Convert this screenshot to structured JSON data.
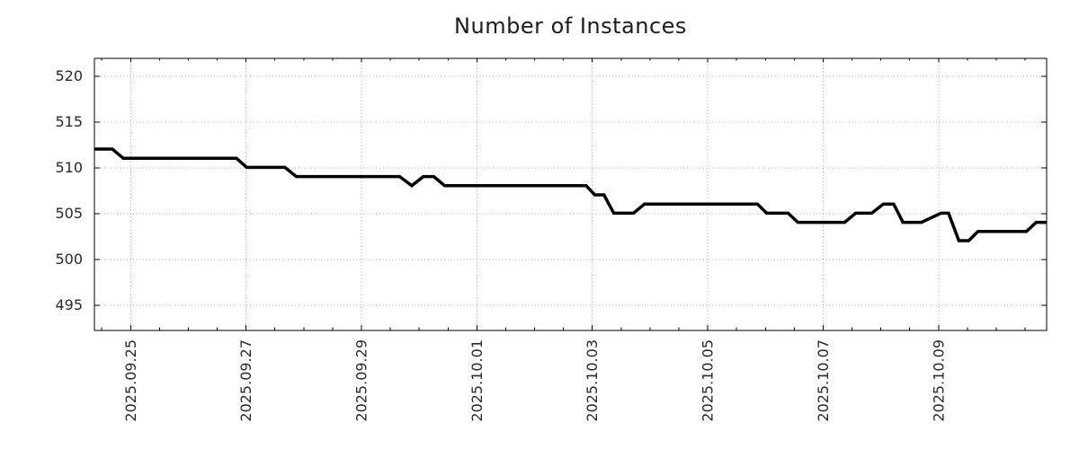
{
  "title": "Number of Instances",
  "colors": {
    "background": "#ffffff",
    "axis": "#000000",
    "grid": "#aeaeae",
    "text": "#2a2a2a",
    "line": "#000000"
  },
  "chart_data": {
    "type": "line",
    "title": "Number of Instances",
    "legend": "none",
    "grid": "dotted major gridlines, both axes",
    "x_axis": {
      "label": "",
      "unit": "days since 2025-09-25 00:00",
      "range": [
        -0.62,
        15.88
      ],
      "major_tick_positions": [
        0,
        2,
        4,
        6,
        8,
        10,
        12,
        14
      ],
      "major_tick_labels": [
        "2025.09.25",
        "2025.09.27",
        "2025.09.29",
        "2025.10.01",
        "2025.10.03",
        "2025.10.05",
        "2025.10.07",
        "2025.10.09"
      ],
      "minor_tick_interval": 0.5,
      "tick_label_rotation_deg": 90
    },
    "y_axis": {
      "label": "",
      "range": [
        492.2,
        521.9
      ],
      "tick_values": [
        495,
        500,
        505,
        510,
        515,
        520
      ]
    },
    "series": [
      {
        "name": "instances",
        "color": "#000000",
        "stroke_width": 3.5,
        "points": [
          [
            -0.62,
            512
          ],
          [
            -0.31,
            512
          ],
          [
            -0.12,
            511
          ],
          [
            1.84,
            511
          ],
          [
            2.02,
            510
          ],
          [
            2.68,
            510
          ],
          [
            2.88,
            509
          ],
          [
            4.67,
            509
          ],
          [
            4.88,
            508
          ],
          [
            5.08,
            509
          ],
          [
            5.26,
            509
          ],
          [
            5.45,
            508
          ],
          [
            7.9,
            508
          ],
          [
            8.05,
            507
          ],
          [
            8.21,
            507
          ],
          [
            8.38,
            505
          ],
          [
            8.72,
            505
          ],
          [
            8.91,
            506
          ],
          [
            10.87,
            506
          ],
          [
            11.03,
            505
          ],
          [
            11.4,
            505
          ],
          [
            11.57,
            504
          ],
          [
            12.38,
            504
          ],
          [
            12.57,
            505
          ],
          [
            12.85,
            505
          ],
          [
            13.05,
            506
          ],
          [
            13.23,
            506
          ],
          [
            13.39,
            504
          ],
          [
            13.71,
            504
          ],
          [
            14.05,
            505
          ],
          [
            14.18,
            505
          ],
          [
            14.36,
            502
          ],
          [
            14.53,
            502
          ],
          [
            14.69,
            503
          ],
          [
            15.53,
            503
          ],
          [
            15.7,
            504
          ],
          [
            15.88,
            504
          ]
        ]
      }
    ]
  }
}
